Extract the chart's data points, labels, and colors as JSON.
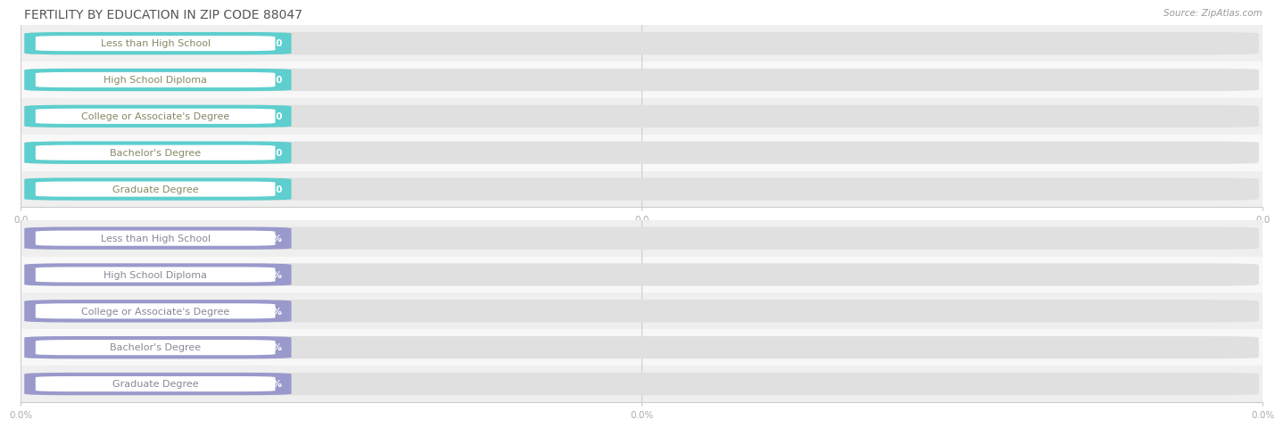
{
  "title": "FERTILITY BY EDUCATION IN ZIP CODE 88047",
  "source": "Source: ZipAtlas.com",
  "categories": [
    "Less than High School",
    "High School Diploma",
    "College or Associate's Degree",
    "Bachelor's Degree",
    "Graduate Degree"
  ],
  "values_top": [
    0.0,
    0.0,
    0.0,
    0.0,
    0.0
  ],
  "values_bottom": [
    0.0,
    0.0,
    0.0,
    0.0,
    0.0
  ],
  "bar_color_top": "#5ECECE",
  "bar_color_bottom": "#9999CC",
  "label_bg_color": "#ffffff",
  "label_text_color_top": "#888866",
  "label_text_color_bottom": "#888899",
  "value_text_color": "#ffffff",
  "bar_bg_color": "#e0e0e0",
  "row_bg_color_odd": "#efefef",
  "row_bg_color_even": "#f8f8f8",
  "grid_color": "#cccccc",
  "background_color": "#ffffff",
  "title_fontsize": 10,
  "label_fontsize": 8,
  "value_fontsize": 7.5,
  "source_fontsize": 7.5,
  "xtick_labels_top": [
    "0.0",
    "0.0",
    "0.0"
  ],
  "xtick_labels_bottom": [
    "0.0%",
    "0.0%",
    "0.0%"
  ],
  "tick_color": "#aaaaaa"
}
